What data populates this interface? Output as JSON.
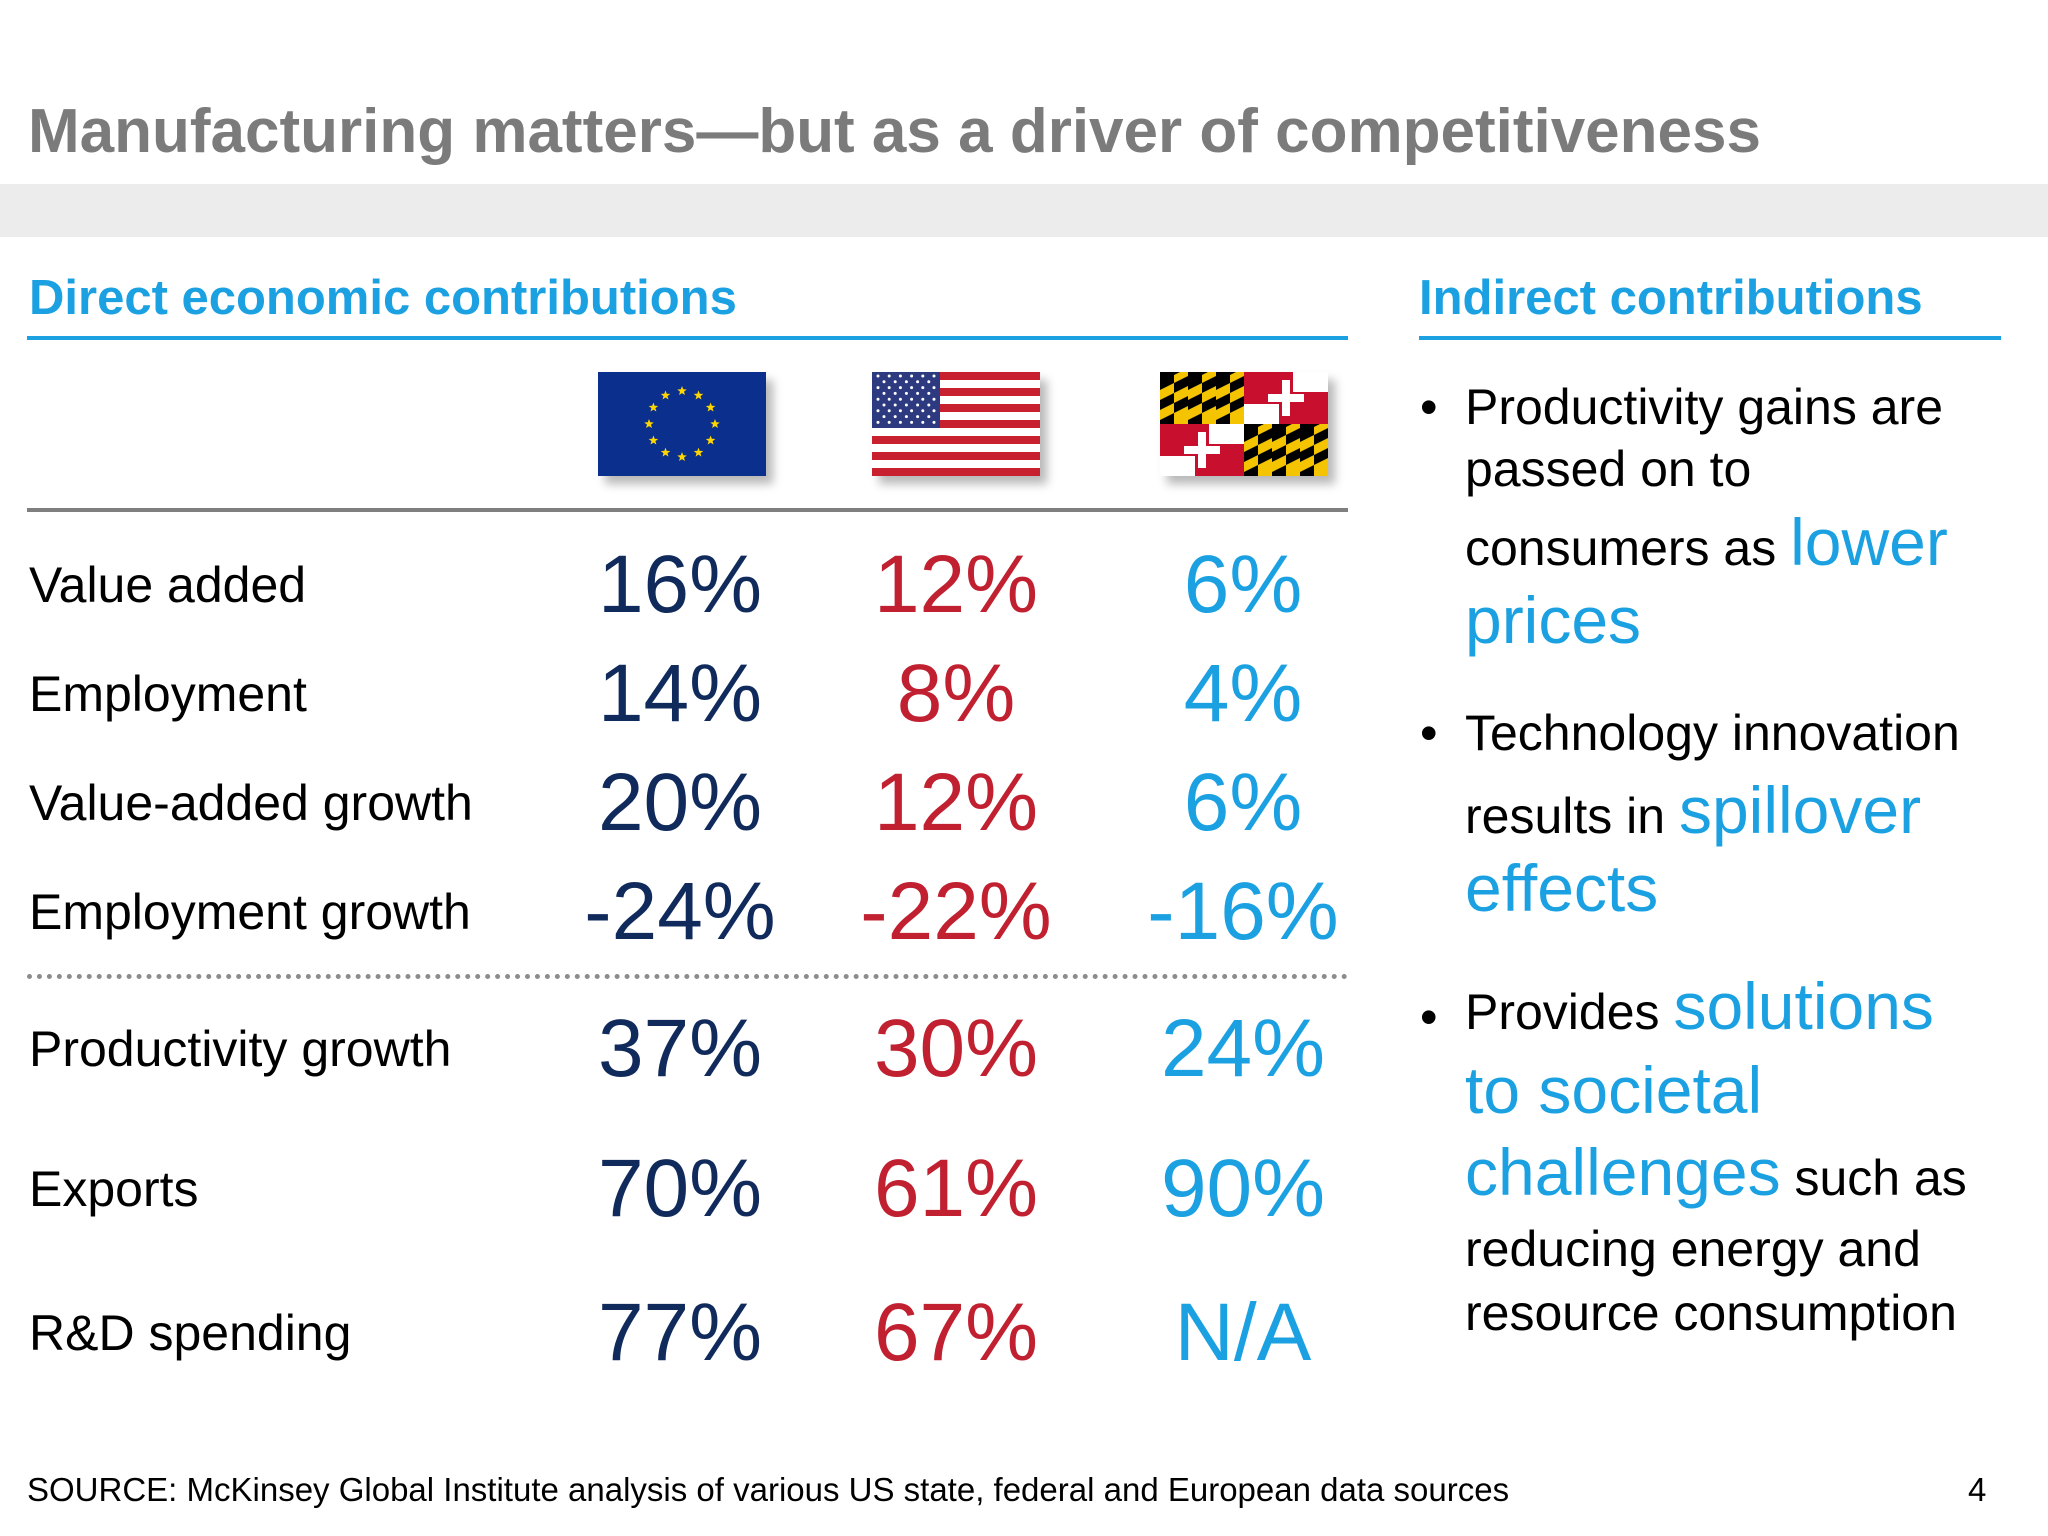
{
  "title": "Manufacturing matters—but as a driver of competitiveness",
  "direct": {
    "heading": "Direct economic contributions",
    "columns": [
      {
        "name": "eu-flag",
        "icon": "eu-flag-icon",
        "color": "#102a5c"
      },
      {
        "name": "us-flag",
        "icon": "us-flag-icon",
        "color": "#c0202f"
      },
      {
        "name": "maryland-flag",
        "icon": "maryland-flag-icon",
        "color": "#1ba1e2"
      }
    ],
    "rows": [
      {
        "label": "Value added",
        "values": [
          "16%",
          "12%",
          "6%"
        ]
      },
      {
        "label": "Employment",
        "values": [
          "14%",
          "8%",
          "4%"
        ]
      },
      {
        "label": "Value-added growth",
        "values": [
          "20%",
          "12%",
          "6%"
        ]
      },
      {
        "label": "Employment growth",
        "values": [
          "-24%",
          "-22%",
          "-16%"
        ]
      },
      {
        "label": "Productivity growth",
        "values": [
          "37%",
          "30%",
          "24%"
        ]
      },
      {
        "label": "Exports",
        "values": [
          "70%",
          "61%",
          "90%"
        ]
      },
      {
        "label": "R&D spending",
        "values": [
          "77%",
          "67%",
          "N/A"
        ]
      }
    ]
  },
  "indirect": {
    "heading": "Indirect contributions",
    "bullets": [
      {
        "lines": [
          {
            "text": "Productivity gains are"
          },
          {
            "text": "passed on to"
          },
          {
            "text": "consumers as ",
            "highlight": "lower"
          },
          {
            "text": "",
            "highlight": "prices"
          }
        ]
      },
      {
        "lines": [
          {
            "text": "Technology innovation"
          },
          {
            "text": "results in ",
            "highlight": "spillover"
          },
          {
            "text": "",
            "highlight": "effects"
          }
        ]
      },
      {
        "lines": [
          {
            "text": "Provides ",
            "highlight": "solutions"
          },
          {
            "text": "",
            "highlight": "to societal"
          },
          {
            "text": "",
            "highlight": "challenges",
            "after": " such as"
          },
          {
            "text": "reducing energy and"
          },
          {
            "text": "resource consumption"
          }
        ]
      }
    ]
  },
  "footer": {
    "source": "SOURCE: McKinsey Global Institute analysis of various US state, federal and European data sources",
    "page_number": "4"
  },
  "colors": {
    "accent_blue": "#1ba1e2",
    "eu_navy": "#102a5c",
    "us_red": "#c0202f",
    "title_grey": "#7b7b7b"
  }
}
